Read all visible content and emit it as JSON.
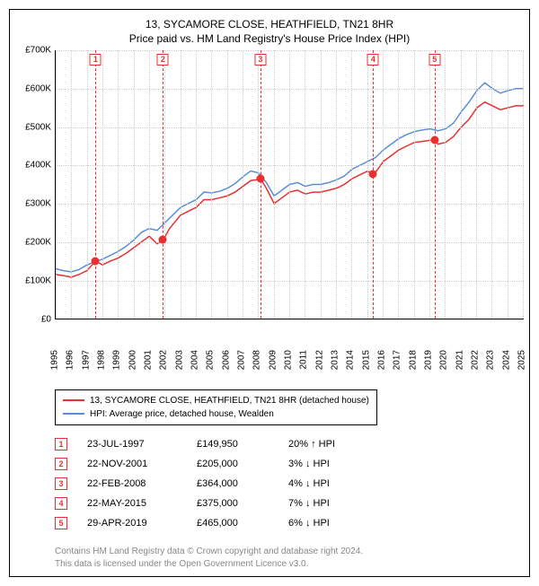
{
  "title_line1": "13, SYCAMORE CLOSE, HEATHFIELD, TN21 8HR",
  "title_line2": "Price paid vs. HM Land Registry's House Price Index (HPI)",
  "chart": {
    "type": "line",
    "background_color": "#ffffff",
    "grid_color": "#cccccc",
    "ylim": [
      0,
      700000
    ],
    "ytick_step": 100000,
    "y_labels": [
      "£0",
      "£100K",
      "£200K",
      "£300K",
      "£400K",
      "£500K",
      "£600K",
      "£700K"
    ],
    "xlim": [
      1995,
      2025
    ],
    "x_labels": [
      "1995",
      "1996",
      "1997",
      "1998",
      "1999",
      "2000",
      "2001",
      "2002",
      "2003",
      "2004",
      "2005",
      "2006",
      "2007",
      "2008",
      "2009",
      "2010",
      "2011",
      "2012",
      "2013",
      "2014",
      "2015",
      "2016",
      "2017",
      "2018",
      "2019",
      "2020",
      "2021",
      "2022",
      "2023",
      "2024",
      "2025"
    ],
    "line_width": 1.5,
    "series": [
      {
        "name": "red",
        "color": "#e83030",
        "points": [
          [
            1995,
            115000
          ],
          [
            1995.5,
            112000
          ],
          [
            1996,
            108000
          ],
          [
            1996.5,
            115000
          ],
          [
            1997,
            125000
          ],
          [
            1997.56,
            149950
          ],
          [
            1998,
            140000
          ],
          [
            1998.5,
            150000
          ],
          [
            1999,
            158000
          ],
          [
            1999.5,
            170000
          ],
          [
            2000,
            185000
          ],
          [
            2000.5,
            200000
          ],
          [
            2001,
            215000
          ],
          [
            2001.5,
            195000
          ],
          [
            2001.89,
            205000
          ],
          [
            2002.3,
            235000
          ],
          [
            2003,
            270000
          ],
          [
            2003.5,
            280000
          ],
          [
            2004,
            290000
          ],
          [
            2004.5,
            310000
          ],
          [
            2005,
            310000
          ],
          [
            2005.5,
            315000
          ],
          [
            2006,
            320000
          ],
          [
            2006.5,
            330000
          ],
          [
            2007,
            345000
          ],
          [
            2007.5,
            360000
          ],
          [
            2008.15,
            364000
          ],
          [
            2008.5,
            340000
          ],
          [
            2009,
            300000
          ],
          [
            2009.5,
            315000
          ],
          [
            2010,
            330000
          ],
          [
            2010.5,
            335000
          ],
          [
            2011,
            325000
          ],
          [
            2011.5,
            330000
          ],
          [
            2012,
            330000
          ],
          [
            2012.5,
            335000
          ],
          [
            2013,
            340000
          ],
          [
            2013.5,
            350000
          ],
          [
            2014,
            365000
          ],
          [
            2014.5,
            375000
          ],
          [
            2015,
            385000
          ],
          [
            2015.39,
            375000
          ],
          [
            2016,
            410000
          ],
          [
            2016.5,
            425000
          ],
          [
            2017,
            440000
          ],
          [
            2017.5,
            450000
          ],
          [
            2018,
            460000
          ],
          [
            2018.5,
            462000
          ],
          [
            2019,
            465000
          ],
          [
            2019.33,
            465000
          ],
          [
            2019.5,
            455000
          ],
          [
            2020,
            460000
          ],
          [
            2020.5,
            475000
          ],
          [
            2021,
            500000
          ],
          [
            2021.5,
            520000
          ],
          [
            2022,
            550000
          ],
          [
            2022.5,
            565000
          ],
          [
            2023,
            555000
          ],
          [
            2023.5,
            545000
          ],
          [
            2024,
            550000
          ],
          [
            2024.5,
            555000
          ],
          [
            2025,
            555000
          ]
        ]
      },
      {
        "name": "blue",
        "color": "#5a8fd6",
        "points": [
          [
            1995,
            130000
          ],
          [
            1995.5,
            125000
          ],
          [
            1996,
            122000
          ],
          [
            1996.5,
            128000
          ],
          [
            1997,
            140000
          ],
          [
            1997.5,
            148000
          ],
          [
            1998,
            155000
          ],
          [
            1998.5,
            165000
          ],
          [
            1999,
            175000
          ],
          [
            1999.5,
            188000
          ],
          [
            2000,
            205000
          ],
          [
            2000.5,
            225000
          ],
          [
            2001,
            235000
          ],
          [
            2001.5,
            230000
          ],
          [
            2002,
            250000
          ],
          [
            2002.5,
            270000
          ],
          [
            2003,
            290000
          ],
          [
            2003.5,
            300000
          ],
          [
            2004,
            310000
          ],
          [
            2004.5,
            330000
          ],
          [
            2005,
            328000
          ],
          [
            2005.5,
            332000
          ],
          [
            2006,
            340000
          ],
          [
            2006.5,
            352000
          ],
          [
            2007,
            370000
          ],
          [
            2007.5,
            385000
          ],
          [
            2008,
            380000
          ],
          [
            2008.5,
            355000
          ],
          [
            2009,
            320000
          ],
          [
            2009.5,
            335000
          ],
          [
            2010,
            350000
          ],
          [
            2010.5,
            355000
          ],
          [
            2011,
            345000
          ],
          [
            2011.5,
            350000
          ],
          [
            2012,
            350000
          ],
          [
            2012.5,
            355000
          ],
          [
            2013,
            362000
          ],
          [
            2013.5,
            372000
          ],
          [
            2014,
            390000
          ],
          [
            2014.5,
            400000
          ],
          [
            2015,
            410000
          ],
          [
            2015.5,
            420000
          ],
          [
            2016,
            440000
          ],
          [
            2016.5,
            455000
          ],
          [
            2017,
            470000
          ],
          [
            2017.5,
            480000
          ],
          [
            2018,
            488000
          ],
          [
            2018.5,
            492000
          ],
          [
            2019,
            495000
          ],
          [
            2019.5,
            490000
          ],
          [
            2020,
            495000
          ],
          [
            2020.5,
            510000
          ],
          [
            2021,
            540000
          ],
          [
            2021.5,
            565000
          ],
          [
            2022,
            595000
          ],
          [
            2022.5,
            615000
          ],
          [
            2023,
            600000
          ],
          [
            2023.5,
            588000
          ],
          [
            2024,
            595000
          ],
          [
            2024.5,
            600000
          ],
          [
            2025,
            600000
          ]
        ]
      }
    ],
    "sale_markers": [
      {
        "num": "1",
        "x": 1997.56,
        "y": 149950
      },
      {
        "num": "2",
        "x": 2001.89,
        "y": 205000
      },
      {
        "num": "3",
        "x": 2008.15,
        "y": 364000
      },
      {
        "num": "4",
        "x": 2015.39,
        "y": 375000
      },
      {
        "num": "5",
        "x": 2019.33,
        "y": 465000
      }
    ]
  },
  "legend": {
    "items": [
      {
        "color": "#e83030",
        "label": "13, SYCAMORE CLOSE, HEATHFIELD, TN21 8HR (detached house)"
      },
      {
        "color": "#5a8fd6",
        "label": "HPI: Average price, detached house, Wealden"
      }
    ]
  },
  "sales_table": [
    {
      "num": "1",
      "date": "23-JUL-1997",
      "price": "£149,950",
      "pct": "20% ↑ HPI"
    },
    {
      "num": "2",
      "date": "22-NOV-2001",
      "price": "£205,000",
      "pct": "3% ↓ HPI"
    },
    {
      "num": "3",
      "date": "22-FEB-2008",
      "price": "£364,000",
      "pct": "4% ↓ HPI"
    },
    {
      "num": "4",
      "date": "22-MAY-2015",
      "price": "£375,000",
      "pct": "7% ↓ HPI"
    },
    {
      "num": "5",
      "date": "29-APR-2019",
      "price": "£465,000",
      "pct": "6% ↓ HPI"
    }
  ],
  "footer_line1": "Contains HM Land Registry data © Crown copyright and database right 2024.",
  "footer_line2": "This data is licensed under the Open Government Licence v3.0."
}
